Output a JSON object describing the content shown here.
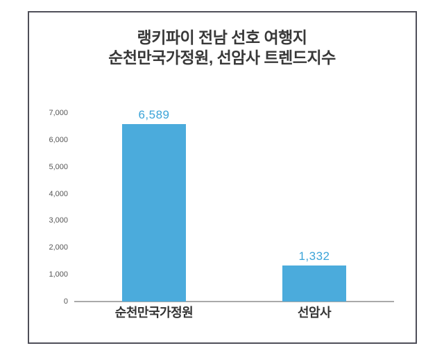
{
  "page": {
    "background": "#ffffff",
    "frame_border_color": "#4e4e58"
  },
  "title": {
    "line1": "랭키파이 전남 선호 여행지",
    "line2": "순천만국가정원, 선암사 트렌드지수",
    "color": "#383838"
  },
  "chart_data": {
    "type": "bar",
    "title": "랭키파이 전남 선호 여행지 순천만국가정원, 선암사 트렌드지수",
    "categories": [
      "순천만국가정원",
      "선암사"
    ],
    "values": [
      6589,
      1332
    ],
    "value_labels": [
      "6,589",
      "1,332"
    ],
    "xlabel": "",
    "ylabel": "",
    "ylim": [
      0,
      7000
    ],
    "ytick_step": 1000,
    "ytick_values": [
      0,
      1000,
      2000,
      3000,
      4000,
      5000,
      6000,
      7000
    ],
    "ytick_labels": [
      "0",
      "1,000",
      "2,000",
      "3,000",
      "4,000",
      "5,000",
      "6,000",
      "7,000"
    ],
    "grid": false,
    "legend": false,
    "bar_color": "#4babdc",
    "value_label_color": "#3aa3d8",
    "category_label_color": "#333333",
    "tick_label_color": "#555555",
    "axis_line_color": "#a9a9a9"
  }
}
